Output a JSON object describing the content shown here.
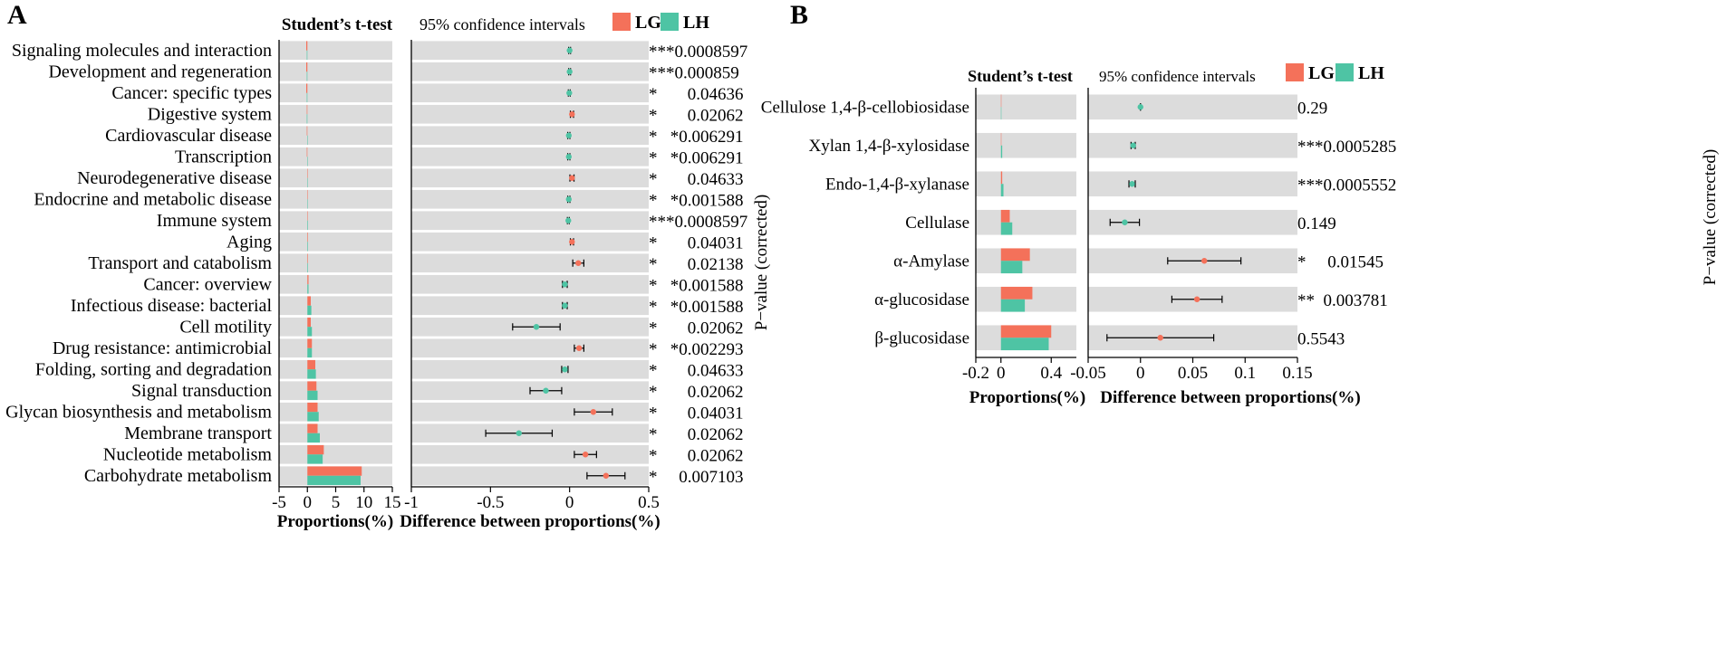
{
  "colors": {
    "LG": "#F4715A",
    "LH": "#4EC4A4",
    "panel_bg": "#DCDCDC",
    "errorbar": "#000000"
  },
  "chart_data": [
    {
      "panel_label": "A",
      "type": "bar",
      "subtype": "extended_error_bar",
      "test_title": "Student’s t-test",
      "ci_title": "95% confidence intervals",
      "legend": [
        {
          "name": "LG",
          "color": "#F4715A"
        },
        {
          "name": "LH",
          "color": "#4EC4A4"
        }
      ],
      "xlabel_left": "Proportions(%)",
      "xlabel_right": "Difference between proportions(%)",
      "ylabel_right": "P−value (corrected)",
      "left_axis": {
        "xlim": [
          -5,
          15
        ],
        "ticks": [
          -5,
          0,
          5,
          10,
          15
        ],
        "tick_labels": [
          "-5",
          "0",
          "5",
          "10",
          "15"
        ]
      },
      "right_axis": {
        "xlim": [
          -1,
          0.5
        ],
        "ticks": [
          -1,
          -0.5,
          0,
          0.5
        ],
        "tick_labels": [
          "-1",
          "-0.5",
          "0",
          "0.5"
        ]
      },
      "categories": [
        "Signaling molecules and interaction",
        "Development and regeneration",
        "Cancer: specific types",
        "Digestive system",
        "Cardiovascular disease",
        "Transcription",
        "Neurodegenerative disease",
        "Endocrine and metabolic disease",
        "Immune system",
        "Aging",
        "Transport and catabolism",
        "Cancer: overview",
        "Infectious disease: bacterial",
        "Cell motility",
        "Drug resistance: antimicrobial",
        "Folding, sorting and degradation",
        "Signal transduction",
        "Glycan biosynthesis and metabolism",
        "Membrane transport",
        "Nucleotide metabolism",
        "Carbohydrate metabolism"
      ],
      "series": [
        {
          "name": "LG",
          "values": [
            -0.2,
            -0.2,
            -0.2,
            -0.1,
            -0.1,
            -0.1,
            0.0,
            0.0,
            0.0,
            0.1,
            0.1,
            0.2,
            0.6,
            0.6,
            0.8,
            1.4,
            1.6,
            1.8,
            1.8,
            2.9,
            9.6
          ]
        },
        {
          "name": "LH",
          "values": [
            -0.1,
            -0.1,
            -0.1,
            -0.1,
            0.0,
            0.0,
            0.0,
            0.0,
            0.1,
            0.1,
            0.1,
            0.2,
            0.7,
            0.8,
            0.8,
            1.5,
            1.8,
            2.0,
            2.2,
            2.7,
            9.4
          ]
        }
      ],
      "difference": [
        {
          "mean": 0.0,
          "lo": -0.006,
          "hi": 0.006,
          "group": "LH"
        },
        {
          "mean": 0.0,
          "lo": -0.006,
          "hi": 0.006,
          "group": "LH"
        },
        {
          "mean": -0.002,
          "lo": -0.008,
          "hi": 0.004,
          "group": "LH"
        },
        {
          "mean": 0.015,
          "lo": 0.005,
          "hi": 0.025,
          "group": "LG"
        },
        {
          "mean": -0.005,
          "lo": -0.012,
          "hi": 0.002,
          "group": "LH"
        },
        {
          "mean": -0.005,
          "lo": -0.012,
          "hi": 0.002,
          "group": "LH"
        },
        {
          "mean": 0.015,
          "lo": 0.002,
          "hi": 0.028,
          "group": "LG"
        },
        {
          "mean": -0.005,
          "lo": -0.012,
          "hi": 0.002,
          "group": "LH"
        },
        {
          "mean": -0.008,
          "lo": -0.014,
          "hi": -0.002,
          "group": "LH"
        },
        {
          "mean": 0.015,
          "lo": 0.005,
          "hi": 0.025,
          "group": "LG"
        },
        {
          "mean": 0.055,
          "lo": 0.02,
          "hi": 0.09,
          "group": "LG"
        },
        {
          "mean": -0.03,
          "lo": -0.045,
          "hi": -0.015,
          "group": "LH"
        },
        {
          "mean": -0.03,
          "lo": -0.045,
          "hi": -0.015,
          "group": "LH"
        },
        {
          "mean": -0.21,
          "lo": -0.36,
          "hi": -0.06,
          "group": "LH"
        },
        {
          "mean": 0.06,
          "lo": 0.03,
          "hi": 0.09,
          "group": "LG"
        },
        {
          "mean": -0.03,
          "lo": -0.05,
          "hi": -0.01,
          "group": "LH"
        },
        {
          "mean": -0.15,
          "lo": -0.25,
          "hi": -0.05,
          "group": "LH"
        },
        {
          "mean": 0.15,
          "lo": 0.03,
          "hi": 0.27,
          "group": "LG"
        },
        {
          "mean": -0.32,
          "lo": -0.53,
          "hi": -0.11,
          "group": "LH"
        },
        {
          "mean": 0.1,
          "lo": 0.03,
          "hi": 0.17,
          "group": "LG"
        },
        {
          "mean": 0.23,
          "lo": 0.11,
          "hi": 0.35,
          "group": "LG"
        }
      ],
      "p_values": [
        "***0.0008597",
        "***0.000859",
        "*       0.04636",
        "*       0.02062",
        "*   *0.006291",
        "*   *0.006291",
        "*       0.04633",
        "*   *0.001588",
        "***0.0008597",
        "*       0.04031",
        "*       0.02138",
        "*   *0.001588",
        "*   *0.001588",
        "*       0.02062",
        "*   *0.002293",
        "*       0.04633",
        "*       0.02062",
        "*       0.04031",
        "*       0.02062",
        "*       0.02062",
        "*     0.007103"
      ]
    },
    {
      "panel_label": "B",
      "type": "bar",
      "subtype": "extended_error_bar",
      "test_title": "Student’s t-test",
      "ci_title": "95% confidence intervals",
      "legend": [
        {
          "name": "LG",
          "color": "#F4715A"
        },
        {
          "name": "LH",
          "color": "#4EC4A4"
        }
      ],
      "xlabel_left": "Proportions(%)",
      "xlabel_right": "Difference between proportions(%)",
      "ylabel_right": "P−value (corrected)",
      "left_axis": {
        "xlim": [
          -0.2,
          0.6
        ],
        "ticks": [
          -0.2,
          0,
          0.4
        ],
        "tick_labels": [
          "-0.2",
          "0",
          "0.4"
        ]
      },
      "right_axis": {
        "xlim": [
          -0.05,
          0.15
        ],
        "ticks": [
          -0.05,
          0,
          0.05,
          0.1,
          0.15
        ],
        "tick_labels": [
          "-0.05",
          "0",
          "0.05",
          "0.1",
          "0.15"
        ]
      },
      "categories": [
        "Cellulose 1,4-β-cellobiosidase",
        "Xylan 1,4-β-xylosidase",
        "Endo-1,4-β-xylanase",
        "Cellulase",
        "α-Amylase",
        "α-glucosidase",
        "β-glucosidase"
      ],
      "series": [
        {
          "name": "LG",
          "values": [
            0.0,
            0.0,
            0.01,
            0.07,
            0.23,
            0.25,
            0.4
          ]
        },
        {
          "name": "LH",
          "values": [
            0.0,
            0.01,
            0.02,
            0.09,
            0.17,
            0.19,
            0.38
          ]
        }
      ],
      "difference": [
        {
          "mean": 0.0,
          "lo": 0.0,
          "hi": 0.0,
          "group": "LH"
        },
        {
          "mean": -0.007,
          "lo": -0.009,
          "hi": -0.005,
          "group": "LH"
        },
        {
          "mean": -0.008,
          "lo": -0.011,
          "hi": -0.005,
          "group": "LH"
        },
        {
          "mean": -0.015,
          "lo": -0.029,
          "hi": -0.001,
          "group": "LH"
        },
        {
          "mean": 0.061,
          "lo": 0.026,
          "hi": 0.096,
          "group": "LG"
        },
        {
          "mean": 0.054,
          "lo": 0.03,
          "hi": 0.078,
          "group": "LG"
        },
        {
          "mean": 0.019,
          "lo": -0.032,
          "hi": 0.07,
          "group": "LG"
        }
      ],
      "p_values": [
        "0.29",
        "***0.0005285",
        "***0.0005552",
        "0.149",
        "*     0.01545",
        "**  0.003781",
        "0.5543"
      ]
    }
  ]
}
